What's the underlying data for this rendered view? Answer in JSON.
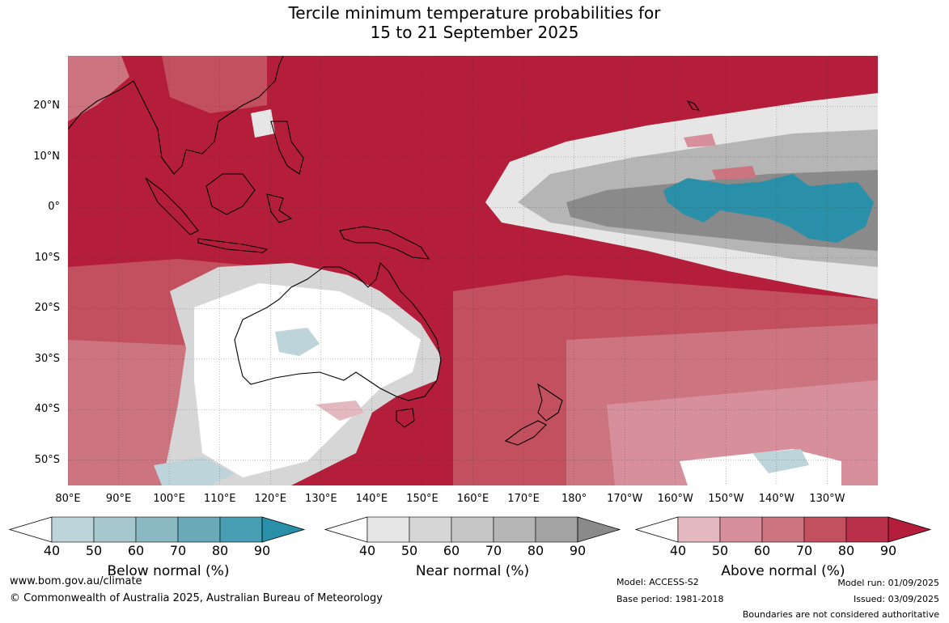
{
  "title": {
    "line1": "Tercile minimum temperature probabilities for",
    "line2": "15 to 21 September 2025"
  },
  "map": {
    "lat_labels": [
      {
        "text": "20°N",
        "lat": 20
      },
      {
        "text": "10°N",
        "lat": 10
      },
      {
        "text": "0°",
        "lat": 0
      },
      {
        "text": "10°S",
        "lat": -10
      },
      {
        "text": "20°S",
        "lat": -20
      },
      {
        "text": "30°S",
        "lat": -30
      },
      {
        "text": "40°S",
        "lat": -40
      },
      {
        "text": "50°S",
        "lat": -50
      }
    ],
    "lon_labels": [
      {
        "text": "80°E",
        "lon": 80
      },
      {
        "text": "90°E",
        "lon": 90
      },
      {
        "text": "100°E",
        "lon": 100
      },
      {
        "text": "110°E",
        "lon": 110
      },
      {
        "text": "120°E",
        "lon": 120
      },
      {
        "text": "130°E",
        "lon": 130
      },
      {
        "text": "140°E",
        "lon": 140
      },
      {
        "text": "150°E",
        "lon": 150
      },
      {
        "text": "160°E",
        "lon": 160
      },
      {
        "text": "170°E",
        "lon": 170
      },
      {
        "text": "180°",
        "lon": 180
      },
      {
        "text": "170°W",
        "lon": 190
      },
      {
        "text": "160°W",
        "lon": 200
      },
      {
        "text": "150°W",
        "lon": 210
      },
      {
        "text": "140°W",
        "lon": 220
      },
      {
        "text": "130°W",
        "lon": 230
      }
    ],
    "lon_range": [
      80,
      240
    ],
    "lat_range": [
      -55,
      30
    ],
    "gridlines": true
  },
  "colorbars": [
    {
      "name": "below",
      "title": "Below normal (%)",
      "ticks": [
        "40",
        "50",
        "60",
        "70",
        "80",
        "90"
      ],
      "colors": [
        "#bdd4da",
        "#a6c7cd",
        "#8ab8c3",
        "#6aa9b8",
        "#489fb3",
        "#2a8fa8"
      ]
    },
    {
      "name": "near",
      "title": "Near normal (%)",
      "ticks": [
        "40",
        "50",
        "60",
        "70",
        "80",
        "90"
      ],
      "colors": [
        "#e6e6e6",
        "#d6d6d6",
        "#c6c6c6",
        "#b5b5b5",
        "#a3a3a3",
        "#8a8a8a"
      ]
    },
    {
      "name": "above",
      "title": "Above normal (%)",
      "ticks": [
        "40",
        "50",
        "60",
        "70",
        "80",
        "90"
      ],
      "colors": [
        "#e3b8bf",
        "#d78f9b",
        "#cc7480",
        "#c2505f",
        "#b9304a",
        "#b51e3a"
      ]
    }
  ],
  "footer": {
    "website": "www.bom.gov.au/climate",
    "copyright": "© Commonwealth of Australia 2025, Australian Bureau of Meteorology",
    "model": "Model: ACCESS-S2",
    "base_period": "Base period: 1981-2018",
    "model_run": "Model run: 01/09/2025",
    "issued": "Issued: 03/09/2025",
    "boundaries": "Boundaries are not considered authoritative"
  }
}
